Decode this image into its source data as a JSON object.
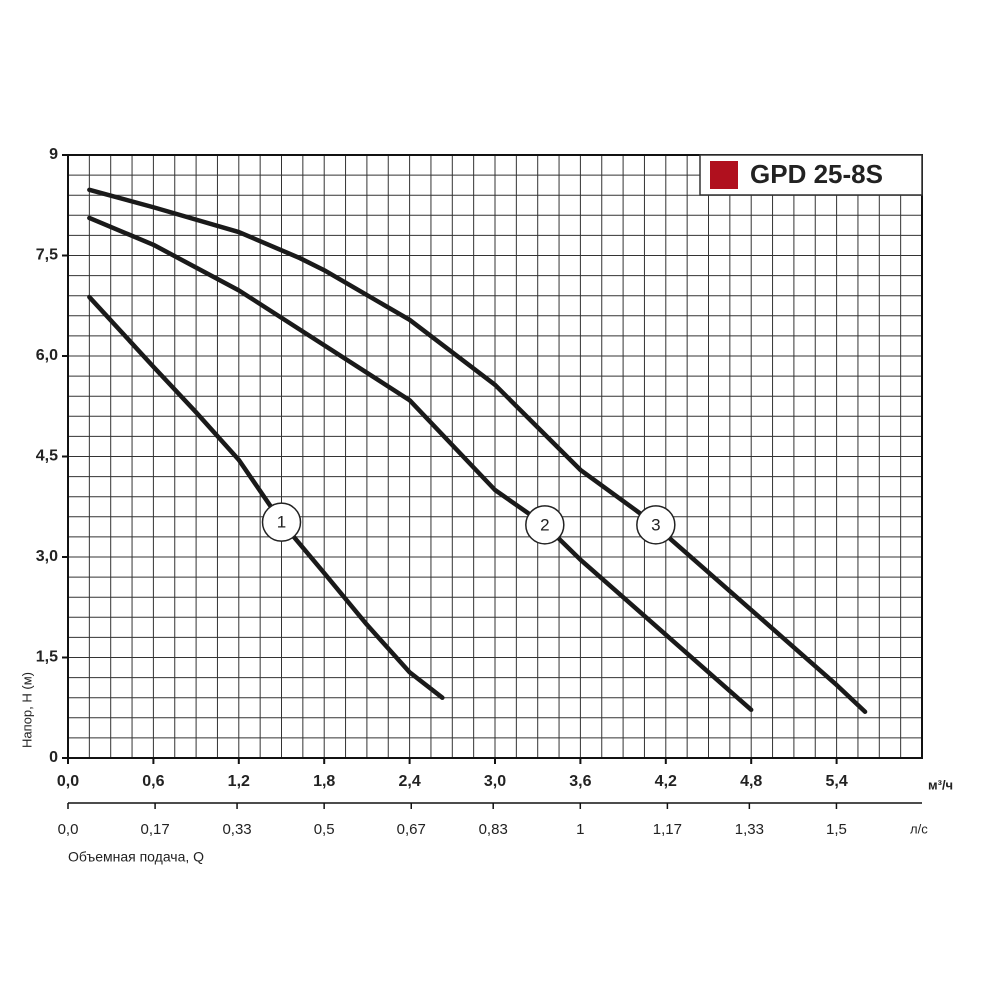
{
  "chart_data": {
    "type": "line",
    "legend": {
      "label": "GPD 25-8S",
      "color": "#b0101e",
      "position": "top-right"
    },
    "ylabel": "Напор, H (м)",
    "xlabel": "Объемная подача, Q",
    "xunit": "м³/ч",
    "x2unit": "л/с",
    "xlim": [
      0,
      6
    ],
    "ylim": [
      0,
      9
    ],
    "x2lim": [
      0,
      1.667
    ],
    "grid": true,
    "minor_divisions": {
      "x": 4,
      "y": 5
    },
    "xticks": [
      {
        "value": 0,
        "label": "0,0"
      },
      {
        "value": 0.6,
        "label": "0,6"
      },
      {
        "value": 1.2,
        "label": "1,2"
      },
      {
        "value": 1.8,
        "label": "1,8"
      },
      {
        "value": 2.4,
        "label": "2,4"
      },
      {
        "value": 3.0,
        "label": "3,0"
      },
      {
        "value": 3.6,
        "label": "3,6"
      },
      {
        "value": 4.2,
        "label": "4,2"
      },
      {
        "value": 4.8,
        "label": "4,8"
      },
      {
        "value": 5.4,
        "label": "5,4"
      }
    ],
    "x2ticks": [
      {
        "value": 0,
        "label": "0,0"
      },
      {
        "value": 0.17,
        "label": "0,17"
      },
      {
        "value": 0.33,
        "label": "0,33"
      },
      {
        "value": 0.5,
        "label": "0,5"
      },
      {
        "value": 0.67,
        "label": "0,67"
      },
      {
        "value": 0.83,
        "label": "0,83"
      },
      1,
      {
        "value": 1.17,
        "label": "1,17"
      },
      {
        "value": 1.33,
        "label": "1,33"
      },
      {
        "value": 1.5,
        "label": "1,5"
      }
    ],
    "yticks": [
      0,
      {
        "value": 1.5,
        "label": "1,5"
      },
      {
        "value": 3.0,
        "label": "3,0"
      },
      {
        "value": 4.5,
        "label": "4,5"
      },
      {
        "value": 6.0,
        "label": "6,0"
      },
      {
        "value": 7.5,
        "label": "7,5"
      },
      9
    ],
    "series": [
      {
        "name": "1",
        "color": "#1a1a1a",
        "x": [
          0.15,
          0.6,
          0.9,
          1.2,
          1.5,
          1.8,
          2.1,
          2.4,
          2.63
        ],
        "values": [
          6.88,
          5.84,
          5.16,
          4.45,
          3.52,
          2.76,
          1.99,
          1.28,
          0.9
        ]
      },
      {
        "name": "2",
        "color": "#1a1a1a",
        "x": [
          0.15,
          0.6,
          1.2,
          1.8,
          2.4,
          3.0,
          3.35,
          3.6,
          4.2,
          4.8
        ],
        "values": [
          8.06,
          7.66,
          6.98,
          6.16,
          5.34,
          4.0,
          3.48,
          2.96,
          1.84,
          0.72
        ]
      },
      {
        "name": "3",
        "color": "#1a1a1a",
        "x": [
          0.15,
          0.6,
          1.2,
          1.63,
          1.8,
          2.4,
          3.0,
          3.6,
          4.13,
          4.2,
          4.8,
          5.4,
          5.6
        ],
        "values": [
          8.48,
          8.22,
          7.85,
          7.46,
          7.28,
          6.54,
          5.57,
          4.3,
          3.48,
          3.33,
          2.21,
          1.09,
          0.69
        ]
      }
    ]
  }
}
